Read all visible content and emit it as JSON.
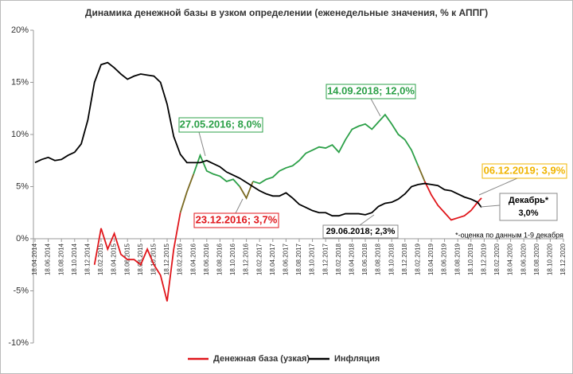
{
  "chart_data": {
    "type": "line",
    "title": "Динамика денежной базы в узком определении (еженедельные значения, % к АППГ)",
    "x": [
      "18.04.2014",
      "18.05.2014",
      "18.06.2014",
      "18.07.2014",
      "18.08.2014",
      "18.09.2014",
      "18.10.2014",
      "18.11.2014",
      "18.12.2014",
      "18.01.2015",
      "18.02.2015",
      "18.03.2015",
      "18.04.2015",
      "18.05.2015",
      "18.06.2015",
      "18.07.2015",
      "18.08.2015",
      "18.09.2015",
      "18.10.2015",
      "18.11.2015",
      "18.12.2015",
      "18.01.2016",
      "18.02.2016",
      "18.03.2016",
      "18.04.2016",
      "18.05.2016",
      "18.06.2016",
      "18.07.2016",
      "18.08.2016",
      "18.09.2016",
      "18.10.2016",
      "18.11.2016",
      "18.12.2016",
      "18.01.2017",
      "18.02.2017",
      "18.03.2017",
      "18.04.2017",
      "18.05.2017",
      "18.06.2017",
      "18.07.2017",
      "18.08.2017",
      "18.09.2017",
      "18.10.2017",
      "18.11.2017",
      "18.12.2017",
      "18.01.2018",
      "18.02.2018",
      "18.03.2018",
      "18.04.2018",
      "18.05.2018",
      "18.06.2018",
      "18.07.2018",
      "18.08.2018",
      "18.09.2018",
      "18.10.2018",
      "18.11.2018",
      "18.12.2018",
      "18.01.2019",
      "18.02.2019",
      "18.03.2019",
      "18.04.2019",
      "18.05.2019",
      "18.06.2019",
      "18.07.2019",
      "18.08.2019",
      "18.09.2019",
      "18.10.2019",
      "18.11.2019",
      "06.12.2019"
    ],
    "series": [
      {
        "name": "Денежная база (узкая)",
        "color": "#e0161b",
        "values": [
          null,
          null,
          null,
          null,
          null,
          null,
          null,
          null,
          null,
          -2.5,
          1.0,
          -1.0,
          0.5,
          -1.5,
          -2.0,
          -2.0,
          -2.5,
          -1.0,
          -2.5,
          -3.5,
          -6.0,
          -1.0,
          2.5,
          4.5,
          6.2,
          8.0,
          6.5,
          6.2,
          6.0,
          5.5,
          5.7,
          5.0,
          3.9,
          5.5,
          5.3,
          5.7,
          5.9,
          6.5,
          6.8,
          7.0,
          7.5,
          8.2,
          8.5,
          8.8,
          8.7,
          9.0,
          8.3,
          9.5,
          10.5,
          10.8,
          11.0,
          10.5,
          11.2,
          11.9,
          11.0,
          10.0,
          9.5,
          8.5,
          7.0,
          5.5,
          4.2,
          3.2,
          2.5,
          1.8,
          2.0,
          2.2,
          2.7,
          3.5,
          3.9
        ],
        "point_colors": [
          null,
          null,
          null,
          null,
          null,
          null,
          null,
          null,
          null,
          "#e0161b",
          "#e0161b",
          "#e0161b",
          "#e0161b",
          "#e0161b",
          "#e0161b",
          "#e0161b",
          "#e0161b",
          "#e0161b",
          "#e0161b",
          "#e0161b",
          "#e0161b",
          "#e0161b",
          "#e0161b",
          "#7a6a22",
          "#7a6a22",
          "#2ca048",
          "#2ca048",
          "#2ca048",
          "#2ca048",
          "#2ca048",
          "#2ca048",
          "#2ca048",
          "#7a6a22",
          "#7a6a22",
          "#2ca048",
          "#2ca048",
          "#2ca048",
          "#2ca048",
          "#2ca048",
          "#2ca048",
          "#2ca048",
          "#2ca048",
          "#2ca048",
          "#2ca048",
          "#2ca048",
          "#2ca048",
          "#2ca048",
          "#2ca048",
          "#2ca048",
          "#2ca048",
          "#2ca048",
          "#2ca048",
          "#2ca048",
          "#2ca048",
          "#2ca048",
          "#2ca048",
          "#2ca048",
          "#2ca048",
          "#2ca048",
          "#7a6a22",
          "#e0161b",
          "#e0161b",
          "#e0161b",
          "#e0161b",
          "#e0161b",
          "#e0161b",
          "#e0161b",
          "#e0161b",
          "#e0161b"
        ]
      },
      {
        "name": "Инфляция",
        "color": "#000000",
        "values": [
          7.3,
          7.6,
          7.8,
          7.5,
          7.6,
          8.0,
          8.3,
          9.1,
          11.4,
          15.0,
          16.7,
          16.9,
          16.4,
          15.8,
          15.3,
          15.6,
          15.8,
          15.7,
          15.6,
          15.0,
          12.9,
          9.8,
          8.1,
          7.3,
          7.3,
          7.3,
          7.5,
          7.2,
          6.9,
          6.4,
          6.1,
          5.8,
          5.4,
          5.0,
          4.6,
          4.3,
          4.1,
          4.1,
          4.4,
          3.9,
          3.3,
          3.0,
          2.7,
          2.5,
          2.5,
          2.2,
          2.2,
          2.4,
          2.4,
          2.4,
          2.3,
          2.5,
          3.1,
          3.4,
          3.5,
          3.8,
          4.3,
          5.0,
          5.2,
          5.3,
          5.2,
          5.1,
          4.7,
          4.6,
          4.3,
          4.0,
          3.8,
          3.5,
          3.0
        ]
      }
    ],
    "xlim": [
      "18.04.2014",
      "18.12.2020"
    ],
    "xticks": [
      "18.04.2014",
      "18.06.2014",
      "18.08.2014",
      "18.10.2014",
      "18.12.2014",
      "18.02.2015",
      "18.04.2015",
      "18.06.2015",
      "18.08.2015",
      "18.10.2015",
      "18.12.2015",
      "18.02.2016",
      "18.04.2016",
      "18.06.2016",
      "18.08.2016",
      "18.10.2016",
      "18.12.2016",
      "18.02.2017",
      "18.04.2017",
      "18.06.2017",
      "18.08.2017",
      "18.10.2017",
      "18.12.2017",
      "18.02.2018",
      "18.04.2018",
      "18.06.2018",
      "18.08.2018",
      "18.10.2018",
      "18.12.2018",
      "18.02.2019",
      "18.04.2019",
      "18.06.2019",
      "18.08.2019",
      "18.10.2019",
      "18.12.2019",
      "18.02.2020",
      "18.04.2020",
      "18.06.2020",
      "18.08.2020",
      "18.10.2020",
      "18.12.2020"
    ],
    "ylim": [
      -10,
      20
    ],
    "yticks": [
      {
        "value": -10,
        "label": "-10%"
      },
      {
        "value": -5,
        "label": "-5%"
      },
      {
        "value": 0,
        "label": "0%"
      },
      {
        "value": 5,
        "label": "5%"
      },
      {
        "value": 10,
        "label": "10%"
      },
      {
        "value": 15,
        "label": "15%"
      },
      {
        "value": 20,
        "label": "20%"
      }
    ],
    "legend": "bottom",
    "annotations": [
      {
        "text": "27.05.2016; 8,0%",
        "color": "#2ca048"
      },
      {
        "text": "14.09.2018; 12,0%",
        "color": "#2ca048"
      },
      {
        "text": "23.12.2016; 3,7%",
        "color": "#e0161b"
      },
      {
        "text": "29.06.2018; 2,3%",
        "color": "#000000"
      },
      {
        "text": "06.12.2019; 3,9%",
        "color": "#f0b400"
      },
      {
        "text": "Декабрь*",
        "color": "#000000"
      },
      {
        "text": "3,0%",
        "color": "#000000"
      },
      {
        "text": "*-оценка по данным 1-9 декабря",
        "color": "#000000"
      }
    ]
  }
}
